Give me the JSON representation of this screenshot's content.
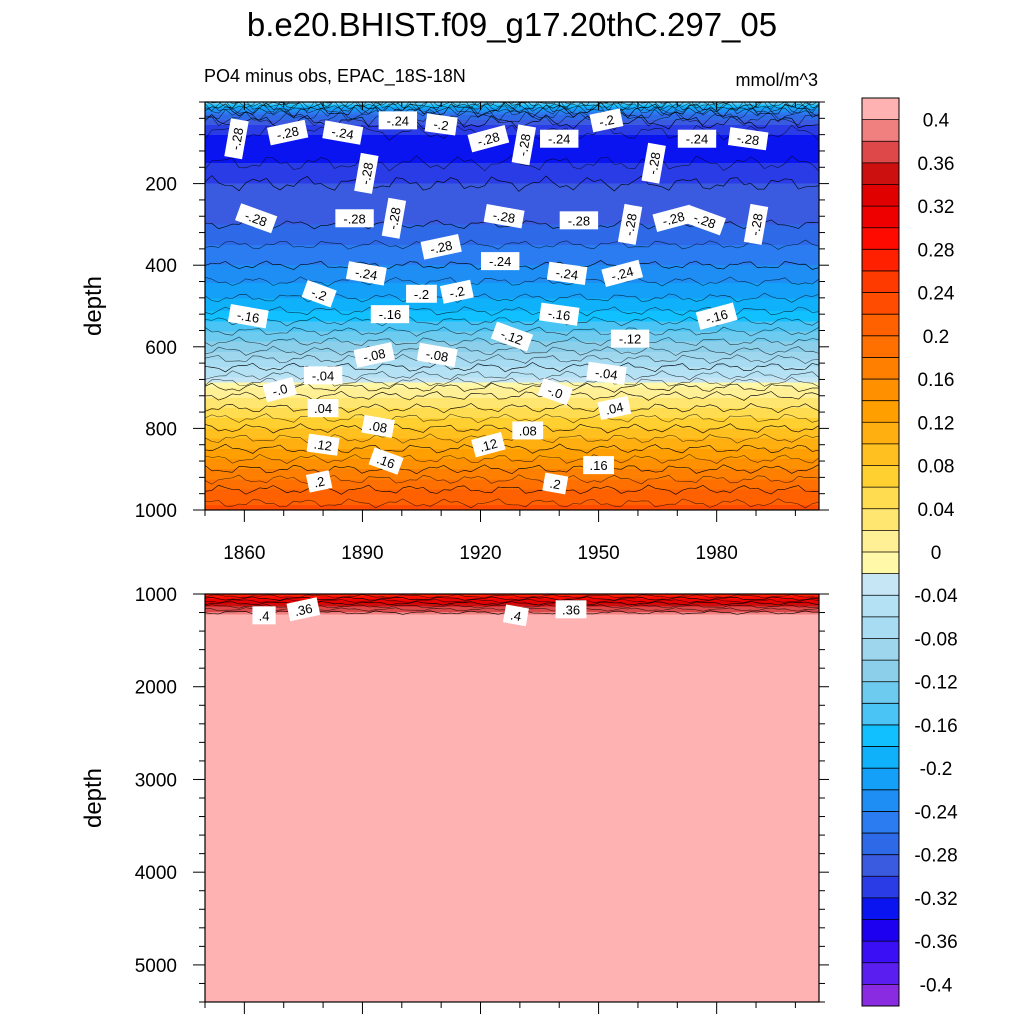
{
  "title": "b.e20.BHIST.f09_g17.20thC.297_05",
  "left_subtitle": "PO4 minus obs, EPAC_18S-18N",
  "right_subtitle": "mmol/m^3",
  "chart_data": [
    {
      "type": "heatmap",
      "panel": "upper",
      "ylabel": "depth",
      "xlim": [
        1850,
        2006
      ],
      "ylim": [
        0,
        1000
      ],
      "y_reversed": true,
      "x_ticks": [
        1860,
        1890,
        1920,
        1950,
        1980
      ],
      "y_ticks": [
        200,
        400,
        600,
        800,
        1000
      ],
      "y_profile": {
        "depth": [
          0,
          20,
          50,
          100,
          200,
          300,
          400,
          500,
          550,
          600,
          650,
          680,
          700,
          720,
          750,
          800,
          850,
          900,
          950,
          1000
        ],
        "value": [
          -0.14,
          -0.24,
          -0.3,
          -0.34,
          -0.3,
          -0.28,
          -0.24,
          -0.19,
          -0.15,
          -0.11,
          -0.06,
          -0.03,
          0.0,
          0.02,
          0.04,
          0.08,
          0.12,
          0.16,
          0.2,
          0.23
        ]
      },
      "contour_labels": [
        {
          "text": "-.28",
          "x": 1858,
          "y": 90
        },
        {
          "text": "-.28",
          "x": 1871,
          "y": 75
        },
        {
          "text": "-.24",
          "x": 1885,
          "y": 75
        },
        {
          "text": "-.24",
          "x": 1899,
          "y": 45
        },
        {
          "text": "-.2",
          "x": 1910,
          "y": 55
        },
        {
          "text": "-.28",
          "x": 1922,
          "y": 90
        },
        {
          "text": "-.28",
          "x": 1931,
          "y": 105
        },
        {
          "text": "-.24",
          "x": 1940,
          "y": 90
        },
        {
          "text": "-.2",
          "x": 1952,
          "y": 45
        },
        {
          "text": "-.28",
          "x": 1964,
          "y": 150
        },
        {
          "text": "-.24",
          "x": 1975,
          "y": 90
        },
        {
          "text": "-.28",
          "x": 1988,
          "y": 90
        },
        {
          "text": "-.28",
          "x": 1891,
          "y": 175
        },
        {
          "text": "-.28",
          "x": 1863,
          "y": 285
        },
        {
          "text": "-.28",
          "x": 1888,
          "y": 285
        },
        {
          "text": "-.28",
          "x": 1898,
          "y": 285
        },
        {
          "text": "-.28",
          "x": 1926,
          "y": 280
        },
        {
          "text": "-.28",
          "x": 1945,
          "y": 290
        },
        {
          "text": "-.28",
          "x": 1958,
          "y": 300
        },
        {
          "text": "-.28",
          "x": 1969,
          "y": 285
        },
        {
          "text": "-.28",
          "x": 1977,
          "y": 290
        },
        {
          "text": "-.28",
          "x": 1990,
          "y": 300
        },
        {
          "text": "-.28",
          "x": 1910,
          "y": 355
        },
        {
          "text": "-.24",
          "x": 1891,
          "y": 420
        },
        {
          "text": "-.24",
          "x": 1925,
          "y": 390
        },
        {
          "text": "-.24",
          "x": 1942,
          "y": 420
        },
        {
          "text": "-.24",
          "x": 1956,
          "y": 420
        },
        {
          "text": "-.2",
          "x": 1879,
          "y": 470
        },
        {
          "text": "-.2",
          "x": 1905,
          "y": 470
        },
        {
          "text": "-.2",
          "x": 1914,
          "y": 465
        },
        {
          "text": "-.16",
          "x": 1861,
          "y": 525
        },
        {
          "text": "-.16",
          "x": 1897,
          "y": 520
        },
        {
          "text": "-.16",
          "x": 1940,
          "y": 520
        },
        {
          "text": "-.16",
          "x": 1980,
          "y": 525
        },
        {
          "text": "-.12",
          "x": 1928,
          "y": 575
        },
        {
          "text": "-.12",
          "x": 1958,
          "y": 580
        },
        {
          "text": "-.08",
          "x": 1893,
          "y": 620
        },
        {
          "text": "-.08",
          "x": 1909,
          "y": 620
        },
        {
          "text": "-.04",
          "x": 1880,
          "y": 670
        },
        {
          "text": "-.04",
          "x": 1952,
          "y": 665
        },
        {
          "text": "-.0",
          "x": 1869,
          "y": 705
        },
        {
          "text": "-.0",
          "x": 1939,
          "y": 710
        },
        {
          "text": ".04",
          "x": 1880,
          "y": 750
        },
        {
          "text": ".04",
          "x": 1954,
          "y": 750
        },
        {
          "text": ".08",
          "x": 1894,
          "y": 795
        },
        {
          "text": ".08",
          "x": 1932,
          "y": 805
        },
        {
          "text": ".12",
          "x": 1880,
          "y": 840
        },
        {
          "text": ".12",
          "x": 1922,
          "y": 840
        },
        {
          "text": ".16",
          "x": 1896,
          "y": 880
        },
        {
          "text": ".16",
          "x": 1950,
          "y": 890
        },
        {
          "text": ".2",
          "x": 1879,
          "y": 930
        },
        {
          "text": ".2",
          "x": 1939,
          "y": 935
        }
      ]
    },
    {
      "type": "heatmap",
      "panel": "lower",
      "ylabel": "depth",
      "xlim": [
        1850,
        2006
      ],
      "ylim": [
        1000,
        5400
      ],
      "y_reversed": true,
      "x_ticks": [
        1860,
        1890,
        1920,
        1950,
        1980
      ],
      "y_ticks": [
        1000,
        2000,
        3000,
        4000,
        5000
      ],
      "y_profile": {
        "depth": [
          1000,
          1050,
          1100,
          1150,
          1200,
          1250,
          5400
        ],
        "value": [
          0.26,
          0.3,
          0.34,
          0.37,
          0.4,
          0.42,
          0.42
        ]
      },
      "contour_labels": [
        {
          "text": ".4",
          "x": 1865,
          "y": 1230
        },
        {
          "text": ".36",
          "x": 1875,
          "y": 1165
        },
        {
          "text": ".4",
          "x": 1929,
          "y": 1230
        },
        {
          "text": ".36",
          "x": 1943,
          "y": 1165
        }
      ]
    }
  ],
  "colorbar": {
    "labels": [
      "0.4",
      "0.36",
      "0.32",
      "0.28",
      "0.24",
      "0.2",
      "0.16",
      "0.12",
      "0.08",
      "0.04",
      "0",
      "-0.04",
      "-0.08",
      "-0.12",
      "-0.16",
      "-0.2",
      "-0.24",
      "-0.28",
      "-0.32",
      "-0.36",
      "-0.4"
    ],
    "boundaries": [
      -0.42,
      -0.4,
      -0.38,
      -0.36,
      -0.34,
      -0.32,
      -0.3,
      -0.28,
      -0.26,
      -0.24,
      -0.22,
      -0.2,
      -0.18,
      -0.16,
      -0.14,
      -0.12,
      -0.1,
      -0.08,
      -0.06,
      -0.04,
      -0.02,
      0,
      0.02,
      0.04,
      0.06,
      0.08,
      0.1,
      0.12,
      0.14,
      0.16,
      0.18,
      0.2,
      0.22,
      0.24,
      0.26,
      0.28,
      0.3,
      0.32,
      0.34,
      0.36,
      0.38,
      0.4,
      0.42
    ],
    "colors": [
      "#8a2be2",
      "#5a1ef0",
      "#3a0ff5",
      "#1e00f0",
      "#0a14f0",
      "#2a3ce6",
      "#3a5ae0",
      "#2e6ae8",
      "#2a7cf0",
      "#1e8ef5",
      "#14a0f8",
      "#0fb2fa",
      "#10c0ff",
      "#4ac4f4",
      "#6ecbf0",
      "#8ccfea",
      "#9ed6ee",
      "#a8dcf2",
      "#b4e2f4",
      "#c6e6f6",
      "#fff8a8",
      "#fff096",
      "#ffe670",
      "#ffdc50",
      "#ffd030",
      "#ffc020",
      "#ffb010",
      "#ffa000",
      "#ff9000",
      "#ff8000",
      "#ff7000",
      "#ff6000",
      "#ff4c00",
      "#ff3a00",
      "#ff2000",
      "#ff0a00",
      "#ee0000",
      "#e00000",
      "#cc1010",
      "#de4848",
      "#f08080",
      "#ffb2b2"
    ]
  }
}
